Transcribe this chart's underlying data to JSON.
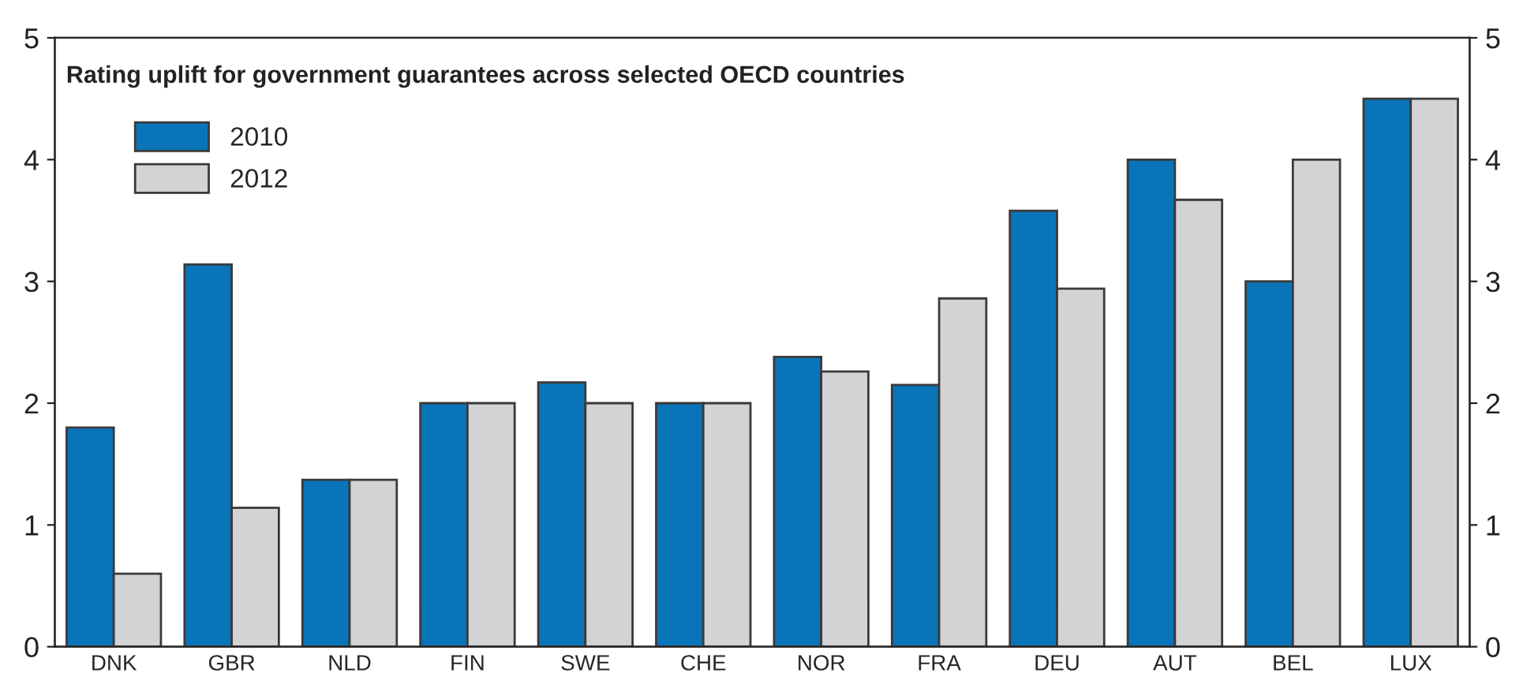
{
  "chart_data": {
    "type": "bar",
    "title": "Rating uplift for government guarantees across selected OECD countries",
    "categories": [
      "DNK",
      "GBR",
      "NLD",
      "FIN",
      "SWE",
      "CHE",
      "NOR",
      "FRA",
      "DEU",
      "AUT",
      "BEL",
      "LUX"
    ],
    "series": [
      {
        "name": "2010",
        "color": "#0a74b9",
        "values": [
          1.8,
          3.14,
          1.37,
          2,
          2.17,
          2,
          2.38,
          2.15,
          3.58,
          4,
          3,
          4.5
        ]
      },
      {
        "name": "2012",
        "color": "#d2d3d5",
        "values": [
          0.6,
          1.14,
          1.37,
          2,
          2,
          2,
          2.26,
          2.86,
          2.94,
          3.67,
          4,
          4.5
        ]
      }
    ],
    "ylim": [
      0,
      5
    ],
    "yticks": [
      0,
      1,
      2,
      3,
      4,
      5
    ],
    "y2lim": [
      0,
      5
    ],
    "y2ticks": [
      0,
      1,
      2,
      3,
      4,
      5
    ],
    "grid": false,
    "legend": "top left"
  }
}
